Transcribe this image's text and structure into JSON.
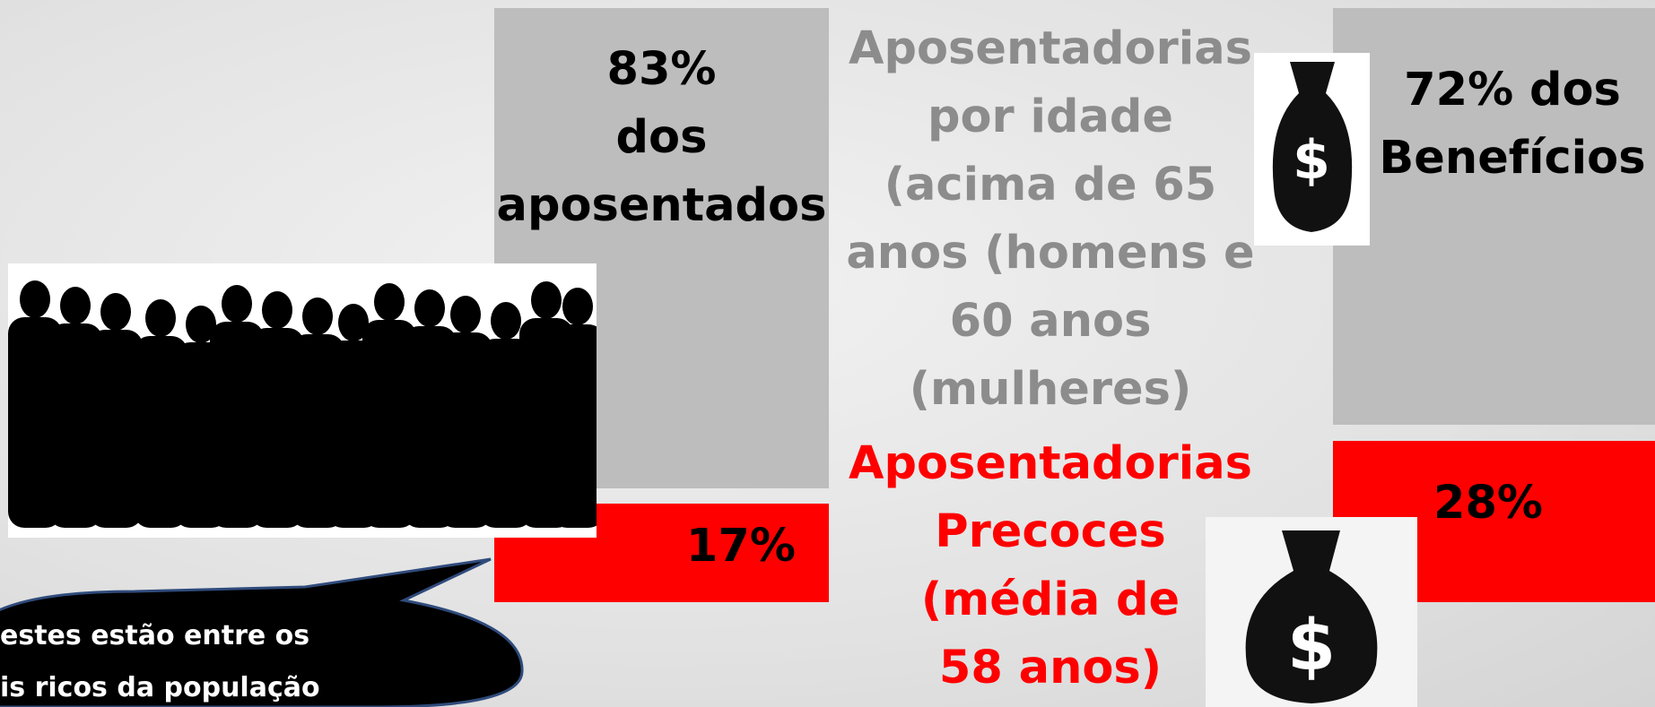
{
  "left_block": {
    "top_lines": [
      "83%",
      "dos",
      "aposentados"
    ],
    "bottom_label": "17%"
  },
  "middle_text": {
    "gray_lines": [
      "Aposentadorias",
      "por idade",
      "(acima de 65",
      "anos (homens e",
      "60 anos",
      "(mulheres)"
    ],
    "red_lines": [
      "Aposentadorias",
      "Precoces",
      "(média de",
      "58 anos)"
    ]
  },
  "right_block": {
    "top_lines": [
      "72% dos",
      "Benefícios"
    ],
    "bottom_label": "28%"
  },
  "callout": {
    "lines": [
      "estes estão entre os",
      "is ricos da população"
    ]
  }
}
